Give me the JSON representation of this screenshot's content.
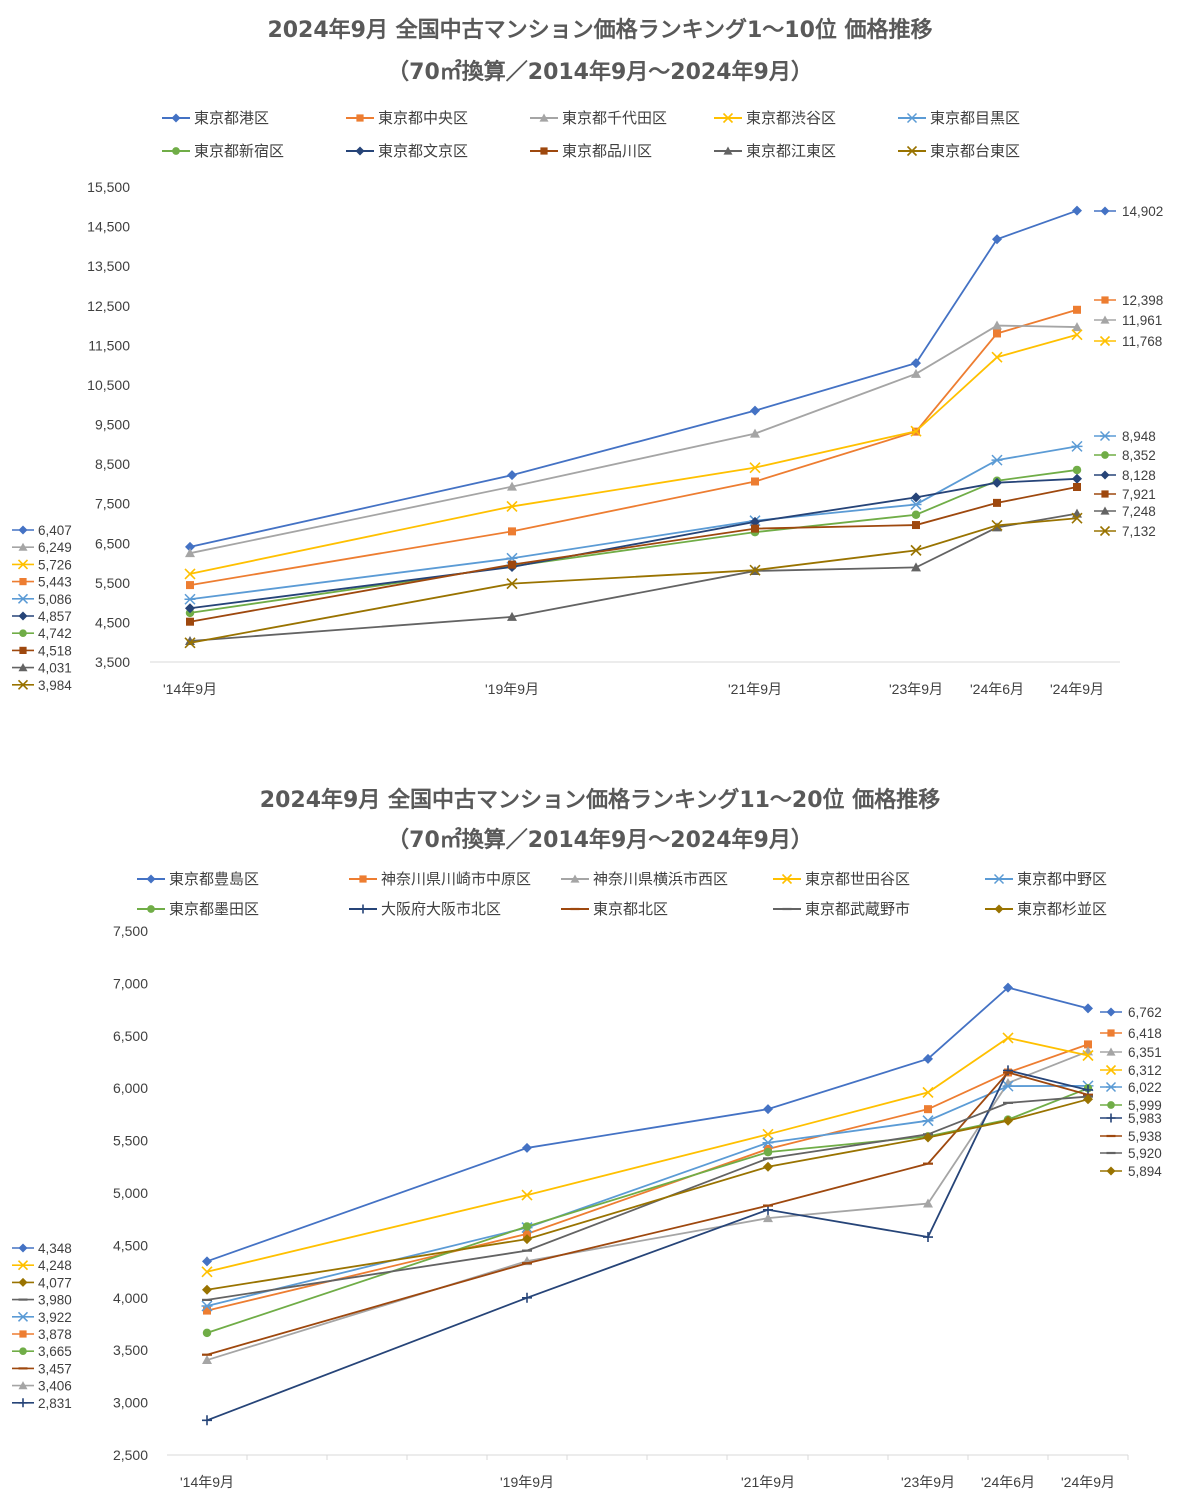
{
  "chart_data": [
    {
      "type": "line",
      "title": "2024年9月 全国中古マンション価格ランキング1～10位 価格推移",
      "subtitle": "（70㎡換算／2014年9月～2024年9月）",
      "categories": [
        "'14年9月",
        "'19年9月",
        "'21年9月",
        "'23年9月",
        "'24年6月",
        "'24年9月"
      ],
      "ylim": [
        3500,
        15500
      ],
      "ytick_step": 1000,
      "legend_position": "top",
      "series": [
        {
          "name": "東京都港区",
          "color": "#4472C4",
          "marker": "diamond",
          "values": [
            6407,
            8220,
            9850,
            11050,
            14180,
            14902
          ]
        },
        {
          "name": "東京都中央区",
          "color": "#ED7D31",
          "marker": "square",
          "values": [
            5443,
            6800,
            8060,
            9320,
            11800,
            12398
          ]
        },
        {
          "name": "東京都千代田区",
          "color": "#A5A5A5",
          "marker": "triangle",
          "values": [
            6249,
            7930,
            9270,
            10780,
            12000,
            11961
          ]
        },
        {
          "name": "東京都渋谷区",
          "color": "#FFC000",
          "marker": "x",
          "values": [
            5726,
            7430,
            8410,
            9330,
            11200,
            11768
          ]
        },
        {
          "name": "東京都目黒区",
          "color": "#5B9BD5",
          "marker": "star",
          "values": [
            5086,
            6120,
            7070,
            7480,
            8600,
            8948
          ]
        },
        {
          "name": "東京都新宿区",
          "color": "#70AD47",
          "marker": "circle",
          "values": [
            4742,
            5920,
            6780,
            7220,
            8080,
            8352
          ]
        },
        {
          "name": "東京都文京区",
          "color": "#264478",
          "marker": "diamond",
          "values": [
            4857,
            5900,
            7040,
            7660,
            8030,
            8128
          ]
        },
        {
          "name": "東京都品川区",
          "color": "#9E480E",
          "marker": "square",
          "values": [
            4518,
            5960,
            6870,
            6960,
            7520,
            7921
          ]
        },
        {
          "name": "東京都江東区",
          "color": "#636363",
          "marker": "triangle",
          "values": [
            4031,
            4640,
            5800,
            5890,
            6900,
            7248
          ]
        },
        {
          "name": "東京都台東区",
          "color": "#997300",
          "marker": "x",
          "values": [
            3984,
            5480,
            5820,
            6320,
            6950,
            7132
          ]
        }
      ],
      "start_labels": [
        "6,407",
        "6,249",
        "5,726",
        "5,443",
        "5,086",
        "4,857",
        "4,742",
        "4,518",
        "4,031",
        "3,984"
      ],
      "end_labels": [
        "14,902",
        "12,398",
        "11,961",
        "11,768",
        "8,948",
        "8,352",
        "8,128",
        "7,921",
        "7,248",
        "7,132"
      ]
    },
    {
      "type": "line",
      "title": "2024年9月 全国中古マンション価格ランキング11～20位 価格推移",
      "subtitle": "（70㎡換算／2014年9月～2024年9月）",
      "categories": [
        "'14年9月",
        "'19年9月",
        "'21年9月",
        "'23年9月",
        "'24年6月",
        "'24年9月"
      ],
      "ylim": [
        2500,
        7500
      ],
      "ytick_step": 500,
      "legend_position": "top",
      "series": [
        {
          "name": "東京都豊島区",
          "color": "#4472C4",
          "marker": "diamond",
          "values": [
            4348,
            5430,
            5800,
            6280,
            6960,
            6762
          ]
        },
        {
          "name": "神奈川県川崎市中原区",
          "color": "#ED7D31",
          "marker": "square",
          "values": [
            3878,
            4610,
            5420,
            5800,
            6150,
            6418
          ]
        },
        {
          "name": "神奈川県横浜市西区",
          "color": "#A5A5A5",
          "marker": "triangle",
          "values": [
            3406,
            4350,
            4760,
            4900,
            6050,
            6351
          ]
        },
        {
          "name": "東京都世田谷区",
          "color": "#FFC000",
          "marker": "x",
          "values": [
            4248,
            4980,
            5560,
            5960,
            6480,
            6312
          ]
        },
        {
          "name": "東京都中野区",
          "color": "#5B9BD5",
          "marker": "star",
          "values": [
            3922,
            4670,
            5480,
            5690,
            6020,
            6022
          ]
        },
        {
          "name": "東京都墨田区",
          "color": "#70AD47",
          "marker": "circle",
          "values": [
            3665,
            4680,
            5390,
            5540,
            5700,
            5999
          ]
        },
        {
          "name": "大阪府大阪市北区",
          "color": "#264478",
          "marker": "plus",
          "values": [
            2831,
            4000,
            4840,
            4580,
            6170,
            5983
          ]
        },
        {
          "name": "東京都北区",
          "color": "#9E480E",
          "marker": "dash",
          "values": [
            3457,
            4330,
            4880,
            5280,
            6150,
            5938
          ]
        },
        {
          "name": "東京都武蔵野市",
          "color": "#636363",
          "marker": "dash",
          "values": [
            3980,
            4450,
            5330,
            5560,
            5860,
            5920
          ]
        },
        {
          "name": "東京都杉並区",
          "color": "#997300",
          "marker": "diamond",
          "values": [
            4077,
            4560,
            5250,
            5530,
            5690,
            5894
          ]
        }
      ],
      "start_labels": [
        "4,348",
        "4,248",
        "4,077",
        "3,980",
        "3,922",
        "3,878",
        "3,665",
        "3,457",
        "3,406",
        "2,831"
      ],
      "end_labels": [
        "6,762",
        "6,418",
        "6,351",
        "6,312",
        "6,022",
        "5,999",
        "5,983",
        "5,938",
        "5,920",
        "5,894"
      ]
    }
  ]
}
